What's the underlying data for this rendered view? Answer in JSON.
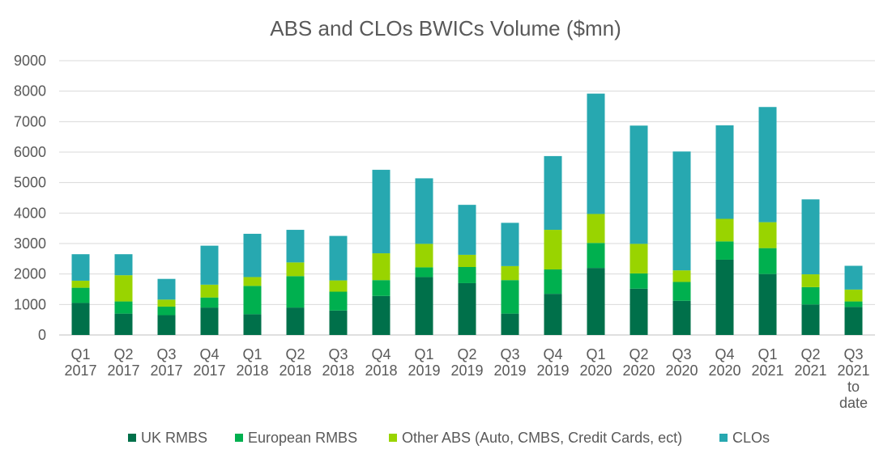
{
  "chart_data": {
    "type": "bar",
    "stacked": true,
    "title": "ABS and CLOs BWICs Volume ($mn)",
    "xlabel": "",
    "ylabel": "",
    "ylim": [
      0,
      9000
    ],
    "yticks": [
      0,
      1000,
      2000,
      3000,
      4000,
      5000,
      6000,
      7000,
      8000,
      9000
    ],
    "grid": true,
    "legend_position": "bottom",
    "categories": [
      [
        "Q1",
        "2017"
      ],
      [
        "Q2",
        "2017"
      ],
      [
        "Q3",
        "2017"
      ],
      [
        "Q4",
        "2017"
      ],
      [
        "Q1",
        "2018"
      ],
      [
        "Q2",
        "2018"
      ],
      [
        "Q3",
        "2018"
      ],
      [
        "Q4",
        "2018"
      ],
      [
        "Q1",
        "2019"
      ],
      [
        "Q2",
        "2019"
      ],
      [
        "Q3",
        "2019"
      ],
      [
        "Q4",
        "2019"
      ],
      [
        "Q1",
        "2020"
      ],
      [
        "Q2",
        "2020"
      ],
      [
        "Q3",
        "2020"
      ],
      [
        "Q4",
        "2020"
      ],
      [
        "Q1",
        "2021"
      ],
      [
        "Q2",
        "2021"
      ],
      [
        "Q3",
        "2021",
        "to",
        "date"
      ]
    ],
    "series": [
      {
        "name": "UK RMBS",
        "color": "#00704a",
        "values": [
          1050,
          700,
          650,
          900,
          680,
          900,
          800,
          1280,
          1900,
          1700,
          700,
          1350,
          2200,
          1520,
          1120,
          2470,
          2000,
          1000,
          920
        ]
      },
      {
        "name": "European RMBS",
        "color": "#00b04f",
        "values": [
          500,
          400,
          280,
          330,
          930,
          1030,
          620,
          520,
          320,
          530,
          1100,
          800,
          820,
          500,
          620,
          600,
          850,
          570,
          180
        ]
      },
      {
        "name": "Other ABS (Auto, CMBS, Credit Cards, ect)",
        "color": "#99d400",
        "values": [
          230,
          860,
          230,
          420,
          290,
          450,
          370,
          880,
          770,
          400,
          460,
          1300,
          950,
          970,
          380,
          740,
          850,
          420,
          390
        ]
      },
      {
        "name": "CLOs",
        "color": "#27a8b0",
        "values": [
          870,
          690,
          680,
          1280,
          1420,
          1070,
          1460,
          2740,
          2150,
          1640,
          1420,
          2420,
          3950,
          3880,
          3900,
          3070,
          3780,
          2460,
          780
        ]
      }
    ]
  }
}
